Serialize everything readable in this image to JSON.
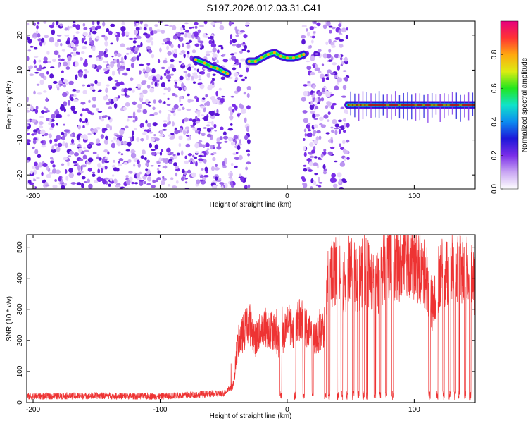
{
  "title": "S197.2026.012.03.31.C41",
  "chart_data": [
    {
      "type": "heatmap",
      "title": "S197.2026.012.03.31.C41",
      "xlabel": "Height of straight line (km)",
      "ylabel": "Frequency (Hz)",
      "xlim": [
        -205,
        148
      ],
      "ylim": [
        -24,
        24
      ],
      "xticks": [
        -200,
        -100,
        0,
        100
      ],
      "yticks": [
        -20,
        -10,
        0,
        10,
        20
      ],
      "colorbar": {
        "label": "Normalized spectral amplitude",
        "range": [
          0,
          1
        ],
        "ticks": [
          0.0,
          0.2,
          0.4,
          0.6,
          0.8
        ],
        "colors": [
          "#ffffff",
          "#c9a6f3",
          "#7a2ee8",
          "#1d17d9",
          "#0b8cf0",
          "#10e3c9",
          "#22e61e",
          "#dcec12",
          "#ffa80f",
          "#ff3333",
          "#e6007e"
        ]
      },
      "regions": [
        {
          "x": [
            -205,
            -62
          ],
          "type": "noise"
        },
        {
          "x": [
            -62,
            -48
          ],
          "type": "noise"
        },
        {
          "x": [
            -48,
            -45
          ],
          "type": "empty"
        },
        {
          "x": [
            -45,
            -30
          ],
          "type": "noise"
        },
        {
          "x": [
            -30,
            12
          ],
          "type": "empty"
        },
        {
          "x": [
            12,
            48
          ],
          "type": "noise"
        },
        {
          "x": [
            48,
            148
          ],
          "type": "empty"
        }
      ],
      "tracks": [
        {
          "x": [
            -72,
            -65,
            -60,
            -55,
            -50,
            -47
          ],
          "freq": [
            13,
            12,
            11,
            10.5,
            9.5,
            9
          ]
        },
        {
          "x": [
            -30,
            -25,
            -20,
            -15,
            -10,
            -5,
            0,
            5,
            10,
            13
          ],
          "freq": [
            12.5,
            12.5,
            13.5,
            14.5,
            15,
            14,
            13.5,
            13.5,
            14,
            14.5
          ]
        },
        {
          "x": [
            48,
            148
          ],
          "freq": [
            0,
            0
          ]
        }
      ]
    },
    {
      "type": "line",
      "xlabel": "Height of straight line (km)",
      "ylabel": "SNR (10 * v/v)",
      "xlim": [
        -205,
        148
      ],
      "ylim": [
        0,
        540
      ],
      "xticks": [
        -200,
        -100,
        0,
        100
      ],
      "yticks": [
        0,
        100,
        200,
        300,
        400,
        500
      ],
      "color": "#ee3333",
      "series": [
        {
          "name": "SNR",
          "x": [
            -205,
            -150,
            -100,
            -60,
            -50,
            -42,
            -40,
            -38,
            -35,
            -30,
            -25,
            -20,
            -10,
            -5,
            0,
            5,
            10,
            15,
            20,
            25,
            30,
            32,
            35,
            40,
            45,
            50,
            55,
            60,
            65,
            70,
            75,
            80,
            85,
            90,
            95,
            100,
            105,
            110,
            115,
            120,
            125,
            130,
            135,
            140,
            145,
            148
          ],
          "values": [
            20,
            22,
            20,
            28,
            30,
            60,
            160,
            200,
            220,
            260,
            200,
            250,
            230,
            180,
            260,
            230,
            270,
            240,
            200,
            220,
            250,
            390,
            420,
            430,
            380,
            450,
            380,
            430,
            410,
            370,
            430,
            460,
            440,
            450,
            470,
            440,
            430,
            400,
            300,
            420,
            410,
            430,
            420,
            430,
            400,
            370
          ]
        }
      ],
      "dropouts": [
        -5,
        6,
        13,
        20,
        30,
        33,
        40,
        43,
        47,
        52,
        56,
        60,
        63,
        69,
        73,
        78,
        83,
        112,
        118,
        123,
        128,
        132,
        135,
        140,
        144
      ]
    }
  ]
}
